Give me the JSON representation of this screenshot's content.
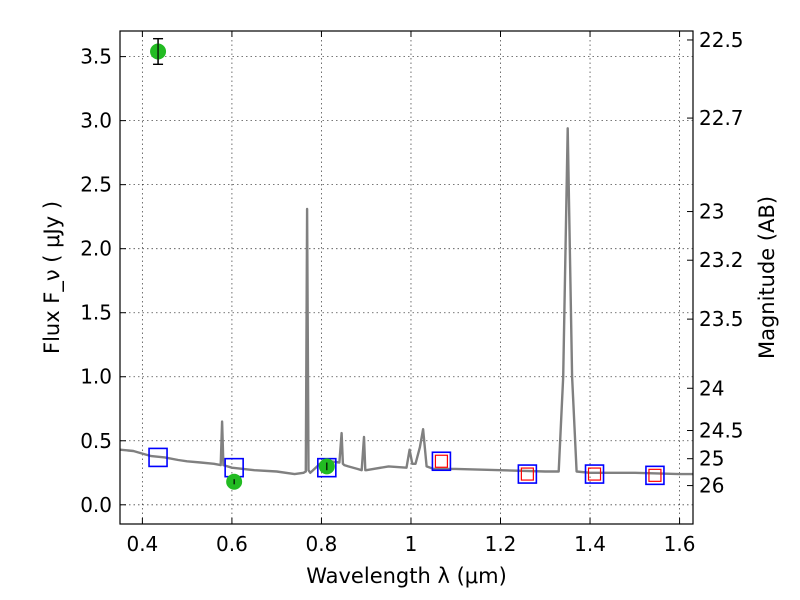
{
  "chart_data": {
    "type": "scatter",
    "xlabel": "Wavelength  λ (μm)",
    "ylabel": "Flux  F_ν  ( μJy )",
    "ylabel_right": "Magnitude (AB)",
    "xlim": [
      0.35,
      1.63
    ],
    "ylim": [
      -0.15,
      3.7
    ],
    "xticks": [
      0.4,
      0.6,
      0.8,
      1.0,
      1.2,
      1.4,
      1.6
    ],
    "xtick_labels": [
      "0.4",
      "0.6",
      "0.8",
      "1",
      "1.2",
      "1.4",
      "1.6"
    ],
    "yticks": [
      0.0,
      0.5,
      1.0,
      1.5,
      2.0,
      2.5,
      3.0,
      3.5
    ],
    "ytick_labels": [
      "0.0",
      "0.5",
      "1.0",
      "1.5",
      "2.0",
      "2.5",
      "3.0",
      "3.5"
    ],
    "right_ticks": [
      {
        "label": "22.5",
        "flux": 3.63
      },
      {
        "label": "22.7",
        "flux": 3.02
      },
      {
        "label": "23",
        "flux": 2.29
      },
      {
        "label": "23.2",
        "flux": 1.91
      },
      {
        "label": "23.5",
        "flux": 1.45
      },
      {
        "label": "24",
        "flux": 0.91
      },
      {
        "label": "24.5",
        "flux": 0.58
      },
      {
        "label": "25",
        "flux": 0.36
      },
      {
        "label": "26",
        "flux": 0.15
      }
    ],
    "grid": true,
    "series": [
      {
        "type": "line",
        "color": "#808080",
        "x": [
          0.35,
          0.38,
          0.4,
          0.42,
          0.45,
          0.48,
          0.5,
          0.53,
          0.56,
          0.575,
          0.578,
          0.581,
          0.6,
          0.65,
          0.7,
          0.74,
          0.76,
          0.765,
          0.768,
          0.771,
          0.775,
          0.8,
          0.82,
          0.84,
          0.845,
          0.848,
          0.851,
          0.86,
          0.88,
          0.89,
          0.895,
          0.898,
          0.9,
          0.95,
          0.99,
          0.997,
          1.003,
          1.01,
          1.02,
          1.027,
          1.035,
          1.05,
          1.1,
          1.2,
          1.3,
          1.33,
          1.34,
          1.35,
          1.36,
          1.37,
          1.4,
          1.5,
          1.6,
          1.63
        ],
        "y": [
          0.43,
          0.42,
          0.4,
          0.38,
          0.37,
          0.35,
          0.34,
          0.33,
          0.32,
          0.31,
          0.65,
          0.31,
          0.29,
          0.27,
          0.26,
          0.24,
          0.25,
          0.26,
          2.31,
          0.27,
          0.25,
          0.33,
          0.34,
          0.33,
          0.56,
          0.32,
          0.31,
          0.3,
          0.28,
          0.27,
          0.53,
          0.27,
          0.27,
          0.3,
          0.29,
          0.43,
          0.32,
          0.32,
          0.45,
          0.59,
          0.3,
          0.28,
          0.28,
          0.27,
          0.26,
          0.26,
          1.0,
          2.94,
          1.0,
          0.26,
          0.25,
          0.25,
          0.24,
          0.24
        ]
      },
      {
        "type": "scatter",
        "marker": "square",
        "color": "#0000ff",
        "x": [
          0.435,
          0.605,
          0.812,
          1.068,
          1.26,
          1.41,
          1.545
        ],
        "y": [
          0.37,
          0.29,
          0.29,
          0.34,
          0.24,
          0.24,
          0.23
        ]
      },
      {
        "type": "scatter",
        "marker": "small-square",
        "color": "#ff0000",
        "x": [
          1.068,
          1.26,
          1.41,
          1.545
        ],
        "y": [
          0.34,
          0.24,
          0.24,
          0.23
        ]
      },
      {
        "type": "scatter",
        "marker": "circle-errorbar",
        "color": "#22bb22",
        "x": [
          0.435,
          0.605,
          0.812
        ],
        "y": [
          3.54,
          0.18,
          0.3
        ],
        "yerr": [
          0.1,
          0.02,
          0.03
        ]
      }
    ]
  }
}
